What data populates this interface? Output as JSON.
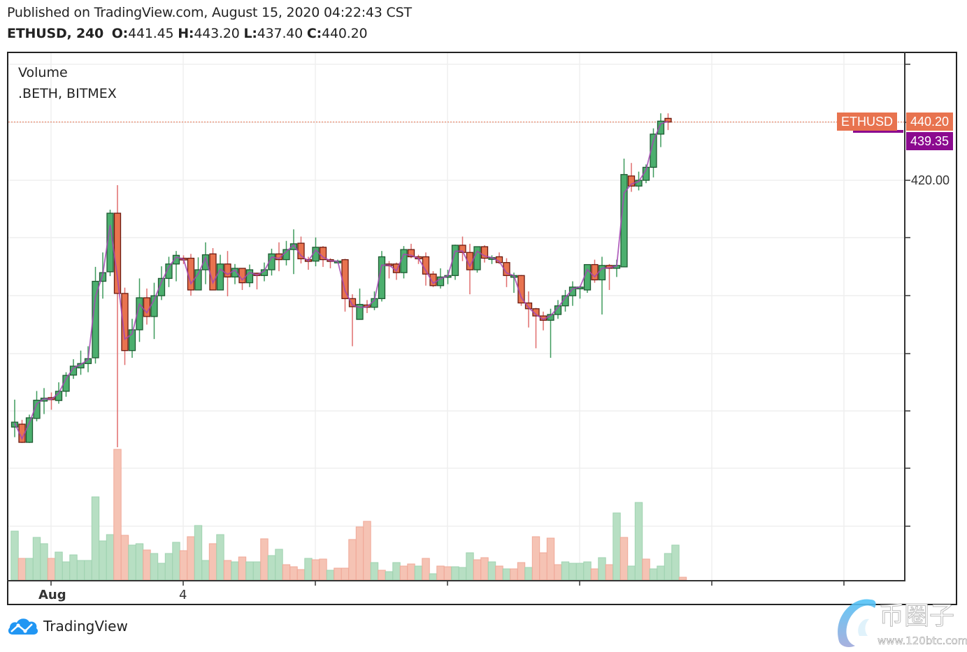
{
  "header": {
    "published": "Published on TradingView.com, August 15, 2020 04:22:43 CST",
    "symbol": "ETHUSD, 240",
    "ohlc": [
      {
        "label": "O:",
        "value": "441.45"
      },
      {
        "label": "H:",
        "value": "443.20"
      },
      {
        "label": "L:",
        "value": "437.40"
      },
      {
        "label": "C:",
        "value": "440.20"
      }
    ]
  },
  "legend": {
    "volume": "Volume",
    "index": ".BETH, BITMEX"
  },
  "price_tags": {
    "symbol_tag": "ETHUSD",
    "last_price": "440.20",
    "index_price": "439.35",
    "last_color": "#e8734f",
    "index_color": "#8b0a8f"
  },
  "y_axis": {
    "visible_label": "420.00"
  },
  "x_axis": {
    "labels": [
      {
        "text": "Aug",
        "bold": true
      },
      {
        "text": "4",
        "bold": false
      }
    ]
  },
  "branding": {
    "name": "TradingView"
  },
  "watermark": {
    "text": "币圈子",
    "url_text": "www.120btc.com"
  },
  "colors": {
    "up": "#4caf6e",
    "down": "#e8734f",
    "up_border": "#1e5a32",
    "down_border": "#6b1a10",
    "vol_up": "#b7dfc3",
    "vol_down": "#f5c3b4",
    "index_line": "#a347b3",
    "grid": "#efefef"
  },
  "chart_data": {
    "type": "candlestick",
    "title": "ETHUSD, 240",
    "subtitle": "Published on TradingView.com, August 15, 2020 04:22:43 CST",
    "xlabel": "",
    "ylabel": "",
    "x_tick_labels": [
      "Aug",
      "4"
    ],
    "y_tick_labels": [
      "420.00"
    ],
    "ylim": [
      296,
      444
    ],
    "grid": true,
    "legend": [
      "Volume",
      ".BETH, BITMEX"
    ],
    "last_price": 440.2,
    "index_price": 439.35,
    "candles": [
      {
        "o": 334.5,
        "h": 344.0,
        "l": 331.0,
        "c": 336.2
      },
      {
        "o": 335.5,
        "h": 337.0,
        "l": 329.0,
        "c": 329.2
      },
      {
        "o": 329.2,
        "h": 338.8,
        "l": 329.0,
        "c": 337.7
      },
      {
        "o": 337.5,
        "h": 347.0,
        "l": 336.5,
        "c": 343.8
      },
      {
        "o": 343.5,
        "h": 348.0,
        "l": 339.0,
        "c": 344.5
      },
      {
        "o": 344.7,
        "h": 346.5,
        "l": 340.5,
        "c": 344.0
      },
      {
        "o": 343.7,
        "h": 350.0,
        "l": 342.6,
        "c": 346.9
      },
      {
        "o": 346.9,
        "h": 353.5,
        "l": 345.0,
        "c": 352.4
      },
      {
        "o": 352.5,
        "h": 358.0,
        "l": 351.2,
        "c": 355.6
      },
      {
        "o": 355.0,
        "h": 361.0,
        "l": 352.6,
        "c": 356.5
      },
      {
        "o": 356.5,
        "h": 362.5,
        "l": 353.5,
        "c": 358.2
      },
      {
        "o": 358.5,
        "h": 390.0,
        "l": 356.5,
        "c": 385.0
      },
      {
        "o": 385.0,
        "h": 395.0,
        "l": 379.0,
        "c": 388.0
      },
      {
        "o": 388.3,
        "h": 409.8,
        "l": 386.8,
        "c": 408.6
      },
      {
        "o": 408.6,
        "h": 418.3,
        "l": 327.5,
        "c": 380.8
      },
      {
        "o": 380.8,
        "h": 382.8,
        "l": 356.0,
        "c": 361.0
      },
      {
        "o": 361.0,
        "h": 372.0,
        "l": 358.5,
        "c": 368.2
      },
      {
        "o": 368.2,
        "h": 386.0,
        "l": 364.0,
        "c": 379.3
      },
      {
        "o": 379.3,
        "h": 382.5,
        "l": 370.0,
        "c": 372.8
      },
      {
        "o": 372.8,
        "h": 384.5,
        "l": 365.0,
        "c": 380.0
      },
      {
        "o": 380.0,
        "h": 390.2,
        "l": 378.5,
        "c": 386.0
      },
      {
        "o": 386.0,
        "h": 393.5,
        "l": 383.0,
        "c": 391.0
      },
      {
        "o": 391.0,
        "h": 395.5,
        "l": 385.0,
        "c": 394.0
      },
      {
        "o": 393.0,
        "h": 394.0,
        "l": 391.0,
        "c": 392.6
      },
      {
        "o": 393.0,
        "h": 394.5,
        "l": 380.0,
        "c": 382.0
      },
      {
        "o": 382.0,
        "h": 393.3,
        "l": 385.0,
        "c": 389.0
      },
      {
        "o": 389.0,
        "h": 398.5,
        "l": 384.0,
        "c": 394.2
      },
      {
        "o": 394.5,
        "h": 396.5,
        "l": 383.0,
        "c": 382.0
      },
      {
        "o": 382.0,
        "h": 394.2,
        "l": 383.0,
        "c": 391.0
      },
      {
        "o": 391.0,
        "h": 395.5,
        "l": 379.8,
        "c": 386.5
      },
      {
        "o": 386.5,
        "h": 391.0,
        "l": 384.0,
        "c": 389.5
      },
      {
        "o": 389.5,
        "h": 388.5,
        "l": 382.0,
        "c": 384.5
      },
      {
        "o": 384.5,
        "h": 390.8,
        "l": 383.0,
        "c": 389.0
      },
      {
        "o": 387.8,
        "h": 388.0,
        "l": 382.2,
        "c": 387.0
      },
      {
        "o": 387.0,
        "h": 391.5,
        "l": 385.0,
        "c": 389.0
      },
      {
        "o": 389.0,
        "h": 396.3,
        "l": 387.0,
        "c": 394.5
      },
      {
        "o": 394.5,
        "h": 398.5,
        "l": 388.5,
        "c": 392.5
      },
      {
        "o": 392.5,
        "h": 399.0,
        "l": 390.5,
        "c": 396.0
      },
      {
        "o": 396.0,
        "h": 403.0,
        "l": 387.5,
        "c": 398.0
      },
      {
        "o": 398.2,
        "h": 400.5,
        "l": 391.2,
        "c": 392.8
      },
      {
        "o": 392.5,
        "h": 393.5,
        "l": 389.0,
        "c": 392.0
      },
      {
        "o": 392.0,
        "h": 400.2,
        "l": 390.2,
        "c": 396.8
      },
      {
        "o": 396.8,
        "h": 397.2,
        "l": 390.0,
        "c": 392.5
      },
      {
        "o": 392.5,
        "h": 393.0,
        "l": 389.5,
        "c": 392.0
      },
      {
        "o": 392.0,
        "h": 392.5,
        "l": 391.5,
        "c": 392.0
      },
      {
        "o": 392.5,
        "h": 392.8,
        "l": 374.5,
        "c": 379.0
      },
      {
        "o": 379.0,
        "h": 380.5,
        "l": 362.5,
        "c": 376.2
      },
      {
        "o": 371.8,
        "h": 382.5,
        "l": 373.5,
        "c": 377.0
      },
      {
        "o": 376.8,
        "h": 378.5,
        "l": 374.0,
        "c": 376.0
      },
      {
        "o": 376.0,
        "h": 381.5,
        "l": 375.0,
        "c": 379.0
      },
      {
        "o": 379.0,
        "h": 395.5,
        "l": 378.0,
        "c": 393.5
      },
      {
        "o": 391.0,
        "h": 392.0,
        "l": 386.0,
        "c": 390.5
      },
      {
        "o": 391.0,
        "h": 391.5,
        "l": 385.5,
        "c": 388.0
      },
      {
        "o": 388.0,
        "h": 397.2,
        "l": 386.0,
        "c": 396.0
      },
      {
        "o": 396.0,
        "h": 398.0,
        "l": 393.0,
        "c": 393.5
      },
      {
        "o": 393.5,
        "h": 394.2,
        "l": 391.0,
        "c": 392.8
      },
      {
        "o": 393.5,
        "h": 395.0,
        "l": 383.5,
        "c": 387.5
      },
      {
        "o": 387.5,
        "h": 388.5,
        "l": 383.0,
        "c": 383.5
      },
      {
        "o": 383.5,
        "h": 389.5,
        "l": 382.5,
        "c": 386.5
      },
      {
        "o": 386.5,
        "h": 389.0,
        "l": 384.0,
        "c": 387.0
      },
      {
        "o": 387.0,
        "h": 397.7,
        "l": 385.5,
        "c": 397.5
      },
      {
        "o": 397.5,
        "h": 400.5,
        "l": 392.0,
        "c": 395.0
      },
      {
        "o": 395.0,
        "h": 398.0,
        "l": 380.5,
        "c": 389.0
      },
      {
        "o": 389.0,
        "h": 397.0,
        "l": 388.0,
        "c": 397.0
      },
      {
        "o": 397.0,
        "h": 397.5,
        "l": 391.5,
        "c": 393.0
      },
      {
        "o": 393.2,
        "h": 394.0,
        "l": 391.0,
        "c": 393.2
      },
      {
        "o": 393.5,
        "h": 395.0,
        "l": 391.0,
        "c": 391.5
      },
      {
        "o": 391.5,
        "h": 393.0,
        "l": 383.0,
        "c": 387.0
      },
      {
        "o": 387.0,
        "h": 388.0,
        "l": 381.0,
        "c": 387.0
      },
      {
        "o": 387.0,
        "h": 387.2,
        "l": 376.5,
        "c": 377.5
      },
      {
        "o": 377.5,
        "h": 381.5,
        "l": 369.0,
        "c": 375.5
      },
      {
        "o": 375.5,
        "h": 375.8,
        "l": 361.8,
        "c": 373.0
      },
      {
        "o": 373.0,
        "h": 374.5,
        "l": 368.0,
        "c": 371.5
      },
      {
        "o": 371.5,
        "h": 375.5,
        "l": 358.5,
        "c": 373.5
      },
      {
        "o": 373.5,
        "h": 378.5,
        "l": 372.0,
        "c": 376.5
      },
      {
        "o": 376.5,
        "h": 382.0,
        "l": 374.5,
        "c": 380.0
      },
      {
        "o": 380.0,
        "h": 385.0,
        "l": 376.5,
        "c": 383.0
      },
      {
        "o": 383.0,
        "h": 383.5,
        "l": 379.0,
        "c": 383.0
      },
      {
        "o": 382.0,
        "h": 390.0,
        "l": 381.0,
        "c": 390.8
      },
      {
        "o": 390.8,
        "h": 392.5,
        "l": 384.5,
        "c": 385.5
      },
      {
        "o": 385.5,
        "h": 393.5,
        "l": 373.5,
        "c": 390.5
      },
      {
        "o": 390.5,
        "h": 391.0,
        "l": 382.0,
        "c": 389.5
      },
      {
        "o": 389.5,
        "h": 392.5,
        "l": 386.5,
        "c": 390.5
      },
      {
        "o": 390.0,
        "h": 427.5,
        "l": 390.0,
        "c": 422.0
      },
      {
        "o": 421.5,
        "h": 426.0,
        "l": 416.0,
        "c": 418.0
      },
      {
        "o": 418.0,
        "h": 423.0,
        "l": 416.5,
        "c": 420.0
      },
      {
        "o": 420.0,
        "h": 425.5,
        "l": 419.0,
        "c": 424.5
      },
      {
        "o": 424.5,
        "h": 438.0,
        "l": 421.0,
        "c": 436.0
      },
      {
        "o": 436.0,
        "h": 443.2,
        "l": 431.5,
        "c": 440.5
      },
      {
        "o": 441.45,
        "h": 443.2,
        "l": 437.4,
        "c": 440.2
      }
    ],
    "volume": [
      {
        "v": 70,
        "up": true
      },
      {
        "v": 31,
        "up": false
      },
      {
        "v": 31,
        "up": true
      },
      {
        "v": 61,
        "up": true
      },
      {
        "v": 52,
        "up": true
      },
      {
        "v": 31,
        "up": false
      },
      {
        "v": 40,
        "up": true
      },
      {
        "v": 26,
        "up": true
      },
      {
        "v": 36,
        "up": true
      },
      {
        "v": 28,
        "up": true
      },
      {
        "v": 28,
        "up": true
      },
      {
        "v": 119,
        "up": true
      },
      {
        "v": 56,
        "up": true
      },
      {
        "v": 65,
        "up": true
      },
      {
        "v": 187,
        "up": false
      },
      {
        "v": 64,
        "up": false
      },
      {
        "v": 50,
        "up": true
      },
      {
        "v": 52,
        "up": true
      },
      {
        "v": 43,
        "up": false
      },
      {
        "v": 38,
        "up": true
      },
      {
        "v": 24,
        "up": true
      },
      {
        "v": 38,
        "up": true
      },
      {
        "v": 54,
        "up": true
      },
      {
        "v": 42,
        "up": false
      },
      {
        "v": 62,
        "up": false
      },
      {
        "v": 78,
        "up": true
      },
      {
        "v": 28,
        "up": true
      },
      {
        "v": 52,
        "up": false
      },
      {
        "v": 65,
        "up": true
      },
      {
        "v": 28,
        "up": false
      },
      {
        "v": 26,
        "up": true
      },
      {
        "v": 33,
        "up": false
      },
      {
        "v": 26,
        "up": true
      },
      {
        "v": 26,
        "up": true
      },
      {
        "v": 59,
        "up": false
      },
      {
        "v": 35,
        "up": true
      },
      {
        "v": 44,
        "up": true
      },
      {
        "v": 22,
        "up": false
      },
      {
        "v": 19,
        "up": false
      },
      {
        "v": 15,
        "up": false
      },
      {
        "v": 31,
        "up": true
      },
      {
        "v": 29,
        "up": false
      },
      {
        "v": 30,
        "up": false
      },
      {
        "v": 14,
        "up": true
      },
      {
        "v": 17,
        "up": false
      },
      {
        "v": 17,
        "up": false
      },
      {
        "v": 58,
        "up": false
      },
      {
        "v": 76,
        "up": false
      },
      {
        "v": 84,
        "up": false
      },
      {
        "v": 25,
        "up": true
      },
      {
        "v": 14,
        "up": false
      },
      {
        "v": 12,
        "up": true
      },
      {
        "v": 25,
        "up": true
      },
      {
        "v": 20,
        "up": false
      },
      {
        "v": 23,
        "up": false
      },
      {
        "v": 20,
        "up": true
      },
      {
        "v": 31,
        "up": false
      },
      {
        "v": 9,
        "up": true
      },
      {
        "v": 20,
        "up": false
      },
      {
        "v": 19,
        "up": false
      },
      {
        "v": 19,
        "up": true
      },
      {
        "v": 18,
        "up": true
      },
      {
        "v": 39,
        "up": true
      },
      {
        "v": 29,
        "up": false
      },
      {
        "v": 32,
        "up": false
      },
      {
        "v": 26,
        "up": true
      },
      {
        "v": 20,
        "up": false
      },
      {
        "v": 16,
        "up": true
      },
      {
        "v": 16,
        "up": false
      },
      {
        "v": 25,
        "up": false
      },
      {
        "v": 18,
        "up": true
      },
      {
        "v": 62,
        "up": false
      },
      {
        "v": 39,
        "up": false
      },
      {
        "v": 60,
        "up": false
      },
      {
        "v": 22,
        "up": false
      },
      {
        "v": 26,
        "up": true
      },
      {
        "v": 24,
        "up": true
      },
      {
        "v": 24,
        "up": true
      },
      {
        "v": 26,
        "up": true
      },
      {
        "v": 16,
        "up": false
      },
      {
        "v": 32,
        "up": true
      },
      {
        "v": 22,
        "up": false
      },
      {
        "v": 96,
        "up": true
      },
      {
        "v": 61,
        "up": false
      },
      {
        "v": 20,
        "up": true
      },
      {
        "v": 111,
        "up": true
      },
      {
        "v": 30,
        "up": false
      },
      {
        "v": 16,
        "up": true
      },
      {
        "v": 20,
        "up": true
      },
      {
        "v": 38,
        "up": true
      },
      {
        "v": 50,
        "up": true
      },
      {
        "v": 4,
        "up": false
      }
    ]
  }
}
